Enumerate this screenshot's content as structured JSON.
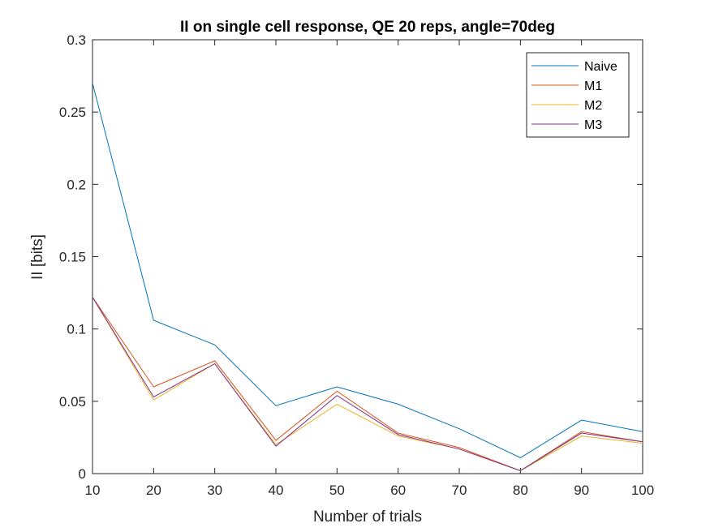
{
  "chart_data": {
    "type": "line",
    "title": "II on single cell response, QE 20 reps, angle=70deg",
    "xlabel": "Number of trials",
    "ylabel": "II [bits]",
    "x": [
      10,
      20,
      30,
      40,
      50,
      60,
      70,
      80,
      90,
      100
    ],
    "xlim": [
      10,
      100
    ],
    "ylim": [
      0,
      0.3
    ],
    "xticks": [
      "10",
      "20",
      "30",
      "40",
      "50",
      "60",
      "70",
      "80",
      "90",
      "100"
    ],
    "yticks": [
      "0",
      "0.05",
      "0.1",
      "0.15",
      "0.2",
      "0.25",
      "0.3"
    ],
    "grid": false,
    "legend_position": "top-right",
    "series": [
      {
        "name": "Naive",
        "color": "#0072BD",
        "values": [
          0.27,
          0.106,
          0.089,
          0.047,
          0.06,
          0.048,
          0.031,
          0.011,
          0.037,
          0.029
        ]
      },
      {
        "name": "M1",
        "color": "#D95319",
        "values": [
          0.122,
          0.06,
          0.078,
          0.023,
          0.057,
          0.028,
          0.018,
          0.002,
          0.029,
          0.022
        ]
      },
      {
        "name": "M2",
        "color": "#EDB120",
        "values": [
          0.122,
          0.051,
          0.076,
          0.02,
          0.048,
          0.026,
          0.017,
          0.002,
          0.026,
          0.021
        ]
      },
      {
        "name": "M3",
        "color": "#7E2F8E",
        "values": [
          0.122,
          0.053,
          0.076,
          0.019,
          0.054,
          0.027,
          0.017,
          0.002,
          0.028,
          0.022
        ]
      }
    ]
  }
}
